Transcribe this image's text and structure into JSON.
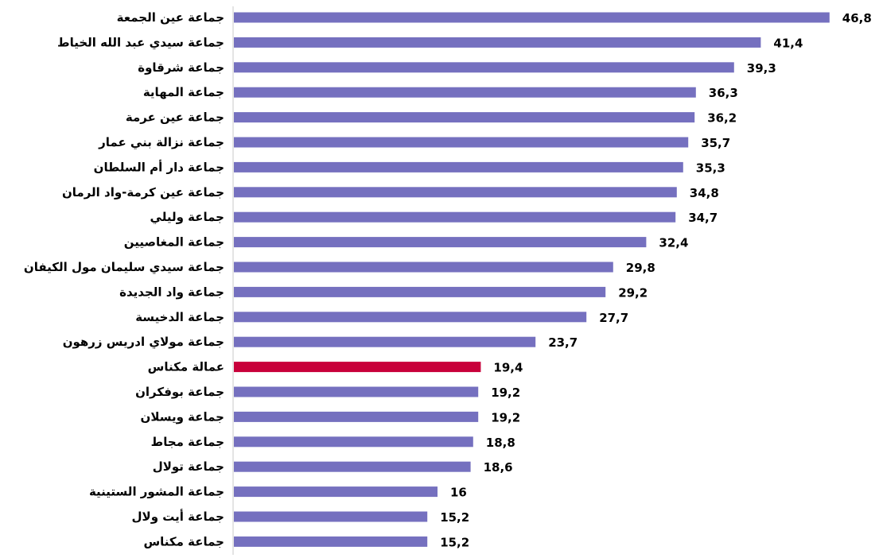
{
  "chart_data": {
    "type": "bar",
    "orientation": "horizontal",
    "title": "",
    "xlabel": "",
    "ylabel": "",
    "xlim": [
      0,
      50
    ],
    "grid": false,
    "legend": "none",
    "bar_color": "#7570BF",
    "highlight_color": "#C8003A",
    "highlight_category": "عمالة مكناس",
    "categories": [
      "جماعة عين الجمعة",
      "جماعة سيدي عبد الله الخياط",
      "جماعة شرقاوة",
      "جماعة المهاية",
      "جماعة عين عرمة",
      "جماعة نزالة بني عمار",
      "جماعة دار أم السلطان",
      "جماعة عين كرمة-واد الرمان",
      "جماعة وليلي",
      "جماعة المغاصيين",
      "جماعة سيدي سليمان مول الكيفان",
      "جماعة واد الجديدة",
      "جماعة الدخيسة",
      "جماعة مولاي ادريس زرهون",
      "عمالة مكناس",
      "جماعة بوفكران",
      "جماعة ويسلان",
      "جماعة مجاط",
      "جماعة تولال",
      "جماعة المشور الستينية",
      "جماعة أيت ولال",
      "جماعة مكناس"
    ],
    "values": [
      46.8,
      41.4,
      39.3,
      36.3,
      36.2,
      35.7,
      35.3,
      34.8,
      34.7,
      32.4,
      29.8,
      29.2,
      27.7,
      23.7,
      19.4,
      19.2,
      19.2,
      18.8,
      18.6,
      16,
      15.2,
      15.2
    ],
    "value_labels": [
      "46,8",
      "41,4",
      "39,3",
      "36,3",
      "36,2",
      "35,7",
      "35,3",
      "34,8",
      "34,7",
      "32,4",
      "29,8",
      "29,2",
      "27,7",
      "23,7",
      "19,4",
      "19,2",
      "19,2",
      "18,8",
      "18,6",
      "16",
      "15,2",
      "15,2"
    ]
  }
}
